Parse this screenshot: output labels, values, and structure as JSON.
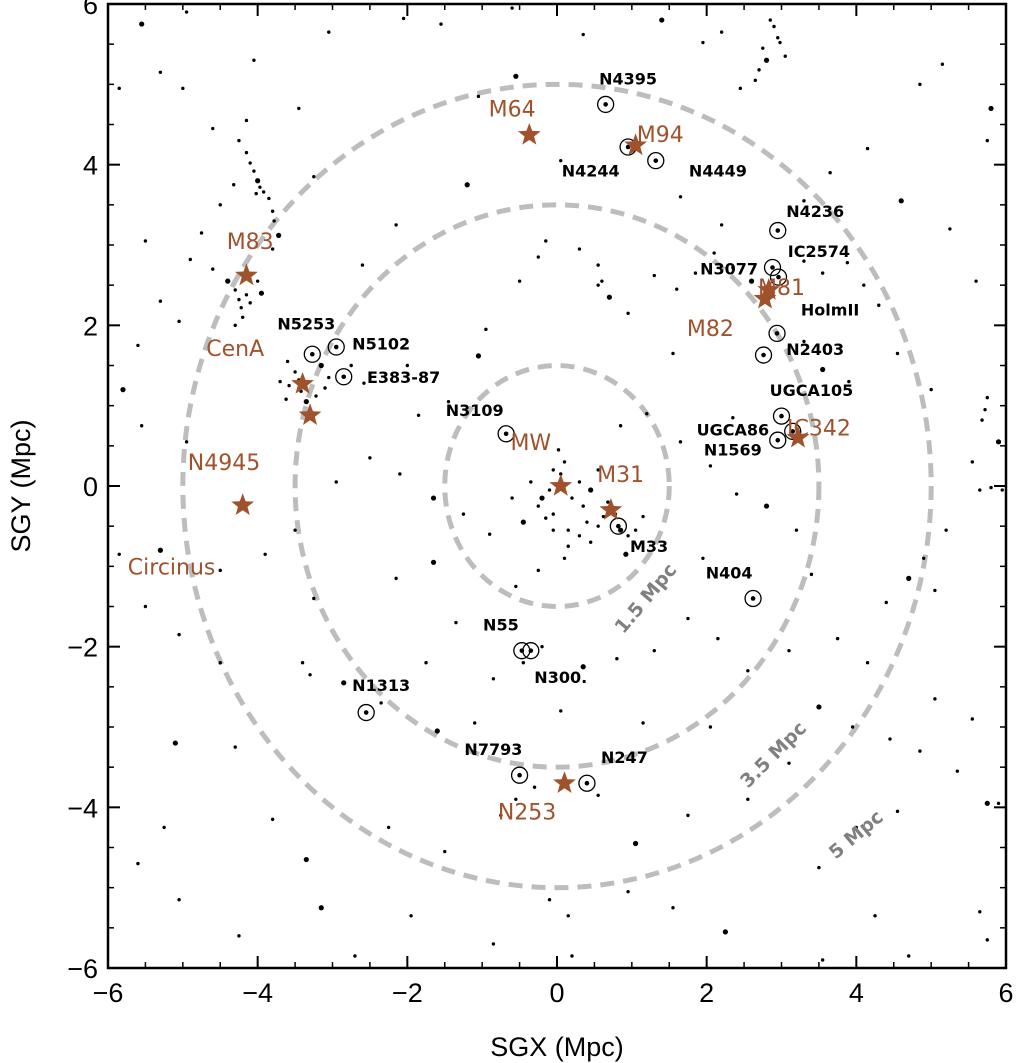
{
  "chart_data": {
    "type": "scatter",
    "xlabel": "SGX (Mpc)",
    "ylabel": "SGY (Mpc)",
    "xlim": [
      -6,
      6
    ],
    "ylim": [
      -6,
      6
    ],
    "xticks": [
      -6,
      -4,
      -2,
      0,
      2,
      4,
      6
    ],
    "yticks": [
      -6,
      -4,
      -2,
      0,
      2,
      4,
      6
    ],
    "xtick_labels": [
      "−6",
      "−4",
      "−2",
      "0",
      "2",
      "4",
      "6"
    ],
    "ytick_labels": [
      "−6",
      "−4",
      "−2",
      "0",
      "2",
      "4",
      "6"
    ],
    "grid": false,
    "colors": {
      "major": "#a0522d",
      "minor": "#000000",
      "rings": "#bdbdbd",
      "ring_labels": "#808080",
      "points": "#000000"
    },
    "rings": [
      {
        "radius": 1.5,
        "label": "1.5 Mpc",
        "label_x": 1.25,
        "label_y": -1.45,
        "angle": -50
      },
      {
        "radius": 3.5,
        "label": "3.5 Mpc",
        "label_x": 2.95,
        "label_y": -3.4,
        "angle": -45
      },
      {
        "radius": 5.0,
        "label": "5 Mpc",
        "label_x": 4.05,
        "label_y": -4.4,
        "angle": -40
      }
    ],
    "major_galaxies": [
      {
        "name": "MW",
        "x": 0.05,
        "y": 0.0,
        "label": "MW",
        "lx": -0.35,
        "ly": 0.45
      },
      {
        "name": "M31",
        "x": 0.72,
        "y": -0.3,
        "label": "M31",
        "lx": 0.85,
        "ly": 0.05
      },
      {
        "name": "M64",
        "x": -0.37,
        "y": 4.37,
        "label": "M64",
        "lx": -0.6,
        "ly": 4.6
      },
      {
        "name": "M94",
        "x": 1.05,
        "y": 4.24,
        "label": "M94",
        "lx": 1.38,
        "ly": 4.28
      },
      {
        "name": "M83",
        "x": -4.15,
        "y": 2.62,
        "label": "M83",
        "lx": -4.1,
        "ly": 2.95
      },
      {
        "name": "CenA",
        "x": -3.4,
        "y": 1.27,
        "label": "CenA",
        "lx": -4.3,
        "ly": 1.62
      },
      {
        "name": "N4945",
        "x": -3.3,
        "y": 0.88,
        "label": "N4945",
        "lx": -4.45,
        "ly": 0.2
      },
      {
        "name": "Circinus",
        "x": -4.2,
        "y": -0.24,
        "label": "Circinus",
        "lx": -5.15,
        "ly": -1.1
      },
      {
        "name": "M81",
        "x": 2.83,
        "y": 2.44,
        "label": "M81",
        "lx": 3.0,
        "ly": 2.38
      },
      {
        "name": "M82",
        "x": 2.78,
        "y": 2.33,
        "label": "M82",
        "lx": 2.05,
        "ly": 1.87
      },
      {
        "name": "IC342",
        "x": 3.22,
        "y": 0.6,
        "label": "IC342",
        "lx": 3.5,
        "ly": 0.63
      },
      {
        "name": "N253",
        "x": 0.1,
        "y": -3.7,
        "label": "N253",
        "lx": -0.4,
        "ly": -4.15
      }
    ],
    "minor_galaxies": [
      {
        "name": "N4395",
        "x": 0.65,
        "y": 4.75,
        "label": "N4395",
        "lx": 0.95,
        "ly": 5.0
      },
      {
        "name": "N4244",
        "x": 0.95,
        "y": 4.22,
        "label": "N4244",
        "lx": 0.45,
        "ly": 3.85
      },
      {
        "name": "N4449",
        "x": 1.32,
        "y": 4.05,
        "label": "N4449",
        "lx": 2.15,
        "ly": 3.85
      },
      {
        "name": "N4236",
        "x": 2.95,
        "y": 3.18,
        "label": "N4236",
        "lx": 3.45,
        "ly": 3.35
      },
      {
        "name": "IC2574",
        "x": 2.88,
        "y": 2.72,
        "label": "IC2574",
        "lx": 3.5,
        "ly": 2.85
      },
      {
        "name": "N3077",
        "x": 2.96,
        "y": 2.6,
        "label": "N3077",
        "lx": 2.3,
        "ly": 2.63
      },
      {
        "name": "HolmII",
        "x": 2.94,
        "y": 1.9,
        "label": "HolmII",
        "lx": 3.65,
        "ly": 2.12
      },
      {
        "name": "N2403",
        "x": 2.76,
        "y": 1.63,
        "label": "N2403",
        "lx": 3.45,
        "ly": 1.63
      },
      {
        "name": "N5253",
        "x": -3.27,
        "y": 1.64,
        "label": "N5253",
        "lx": -3.35,
        "ly": 1.95
      },
      {
        "name": "N5102",
        "x": -2.95,
        "y": 1.73,
        "label": "N5102",
        "lx": -2.35,
        "ly": 1.7
      },
      {
        "name": "E383-87",
        "x": -2.85,
        "y": 1.36,
        "label": "E383-87",
        "lx": -2.05,
        "ly": 1.28
      },
      {
        "name": "N3109",
        "x": -0.68,
        "y": 0.65,
        "label": "N3109",
        "lx": -1.1,
        "ly": 0.87
      },
      {
        "name": "UGCA105",
        "x": 3.0,
        "y": 0.87,
        "label": "UGCA105",
        "lx": 3.4,
        "ly": 1.12
      },
      {
        "name": "UGCA86",
        "x": 3.15,
        "y": 0.68,
        "label": "UGCA86",
        "lx": 2.35,
        "ly": 0.63
      },
      {
        "name": "N1569",
        "x": 2.95,
        "y": 0.57,
        "label": "N1569",
        "lx": 2.35,
        "ly": 0.38
      },
      {
        "name": "M33",
        "x": 0.82,
        "y": -0.5,
        "label": "M33",
        "lx": 1.23,
        "ly": -0.82
      },
      {
        "name": "N404",
        "x": 2.62,
        "y": -1.4,
        "label": "N404",
        "lx": 2.3,
        "ly": -1.15
      },
      {
        "name": "N55",
        "x": -0.47,
        "y": -2.05,
        "label": "N55",
        "lx": -0.75,
        "ly": -1.8
      },
      {
        "name": "N300",
        "x": -0.35,
        "y": -2.05,
        "label": "N300.",
        "lx": 0.05,
        "ly": -2.45
      },
      {
        "name": "N1313",
        "x": -2.55,
        "y": -2.82,
        "label": "N1313",
        "lx": -2.35,
        "ly": -2.55
      },
      {
        "name": "N7793",
        "x": -0.5,
        "y": -3.6,
        "label": "N7793",
        "lx": -0.85,
        "ly": -3.35
      },
      {
        "name": "N247",
        "x": 0.4,
        "y": -3.7,
        "label": "N247",
        "lx": 0.9,
        "ly": -3.45
      }
    ],
    "field_points": [
      [
        -5.55,
        5.75
      ],
      [
        -4.95,
        5.9
      ],
      [
        -3.05,
        5.65
      ],
      [
        -2.05,
        5.82
      ],
      [
        -1.55,
        5.75
      ],
      [
        -0.6,
        5.95
      ],
      [
        0.35,
        5.62
      ],
      [
        1.4,
        5.8
      ],
      [
        1.95,
        5.52
      ],
      [
        2.2,
        5.65
      ],
      [
        2.85,
        5.8
      ],
      [
        2.9,
        5.72
      ],
      [
        2.95,
        5.58
      ],
      [
        2.75,
        5.45
      ],
      [
        2.8,
        5.3
      ],
      [
        2.7,
        5.18
      ],
      [
        2.65,
        5.05
      ],
      [
        2.98,
        5.52
      ],
      [
        3.05,
        5.35
      ],
      [
        5.15,
        5.25
      ],
      [
        4.85,
        5.0
      ],
      [
        5.8,
        4.7
      ],
      [
        5.75,
        4.3
      ],
      [
        -5.3,
        5.15
      ],
      [
        -5.0,
        4.95
      ],
      [
        -4.05,
        5.3
      ],
      [
        -3.45,
        4.7
      ],
      [
        -1.05,
        4.85
      ],
      [
        -0.55,
        5.1
      ],
      [
        2.45,
        4.95
      ],
      [
        -4.15,
        4.55
      ],
      [
        -4.25,
        4.3
      ],
      [
        -4.15,
        4.15
      ],
      [
        -4.1,
        4.02
      ],
      [
        -4.05,
        3.92
      ],
      [
        -4.0,
        3.8
      ],
      [
        -3.97,
        3.72
      ],
      [
        -3.92,
        3.66
      ],
      [
        -4.02,
        3.64
      ],
      [
        -3.85,
        3.58
      ],
      [
        -3.8,
        3.42
      ],
      [
        -3.78,
        3.3
      ],
      [
        -3.72,
        3.12
      ],
      [
        -3.8,
        2.95
      ],
      [
        -4.32,
        3.75
      ],
      [
        -4.5,
        3.5
      ],
      [
        -4.75,
        3.15
      ],
      [
        -4.9,
        2.82
      ],
      [
        -4.6,
        2.7
      ],
      [
        -4.4,
        2.55
      ],
      [
        -4.3,
        2.44
      ],
      [
        -4.25,
        2.32
      ],
      [
        -4.22,
        2.22
      ],
      [
        -4.2,
        2.1
      ],
      [
        -4.3,
        2.0
      ],
      [
        -4.0,
        2.55
      ],
      [
        -3.95,
        2.4
      ],
      [
        -4.15,
        2.38
      ],
      [
        -4.1,
        2.28
      ],
      [
        -5.5,
        3.05
      ],
      [
        -5.3,
        2.3
      ],
      [
        -5.05,
        2.05
      ],
      [
        -5.6,
        1.75
      ],
      [
        -5.8,
        1.2
      ],
      [
        -5.55,
        0.75
      ],
      [
        -4.95,
        0.55
      ],
      [
        -3.6,
        1.55
      ],
      [
        -3.5,
        1.42
      ],
      [
        -3.45,
        1.32
      ],
      [
        -3.42,
        1.18
      ],
      [
        -3.35,
        1.05
      ],
      [
        -3.3,
        0.95
      ],
      [
        -3.22,
        1.12
      ],
      [
        -3.1,
        1.22
      ],
      [
        -3.58,
        1.25
      ],
      [
        -3.62,
        1.08
      ],
      [
        -3.7,
        1.3
      ],
      [
        -3.15,
        1.5
      ],
      [
        -3.05,
        1.35
      ],
      [
        -2.75,
        1.5
      ],
      [
        -2.58,
        1.28
      ],
      [
        -2.0,
        1.5
      ],
      [
        -1.85,
        0.88
      ],
      [
        -1.45,
        1.05
      ],
      [
        -1.05,
        1.62
      ],
      [
        -0.95,
        1.95
      ],
      [
        -0.5,
        2.55
      ],
      [
        -0.15,
        3.05
      ],
      [
        0.3,
        2.95
      ],
      [
        0.55,
        2.75
      ],
      [
        0.6,
        2.55
      ],
      [
        0.7,
        2.35
      ],
      [
        0.55,
        2.5
      ],
      [
        1.3,
        2.62
      ],
      [
        1.6,
        2.45
      ],
      [
        1.85,
        2.65
      ],
      [
        2.1,
        2.9
      ],
      [
        2.35,
        2.72
      ],
      [
        2.6,
        2.55
      ],
      [
        3.3,
        2.8
      ],
      [
        3.55,
        2.65
      ],
      [
        3.88,
        2.78
      ],
      [
        4.1,
        2.5
      ],
      [
        4.3,
        2.25
      ],
      [
        3.3,
        1.8
      ],
      [
        3.55,
        1.45
      ],
      [
        3.9,
        1.3
      ],
      [
        4.55,
        1.65
      ],
      [
        5.0,
        1.2
      ],
      [
        5.75,
        1.1
      ],
      [
        5.72,
        0.95
      ],
      [
        5.68,
        0.82
      ],
      [
        5.9,
        0.55
      ],
      [
        5.55,
        0.3
      ],
      [
        5.8,
        -0.02
      ],
      [
        5.65,
        -0.05
      ],
      [
        5.95,
        -0.05
      ],
      [
        5.2,
        -0.55
      ],
      [
        4.9,
        -0.9
      ],
      [
        4.7,
        -1.15
      ],
      [
        5.05,
        -1.3
      ],
      [
        4.4,
        -1.45
      ],
      [
        4.15,
        -2.2
      ],
      [
        3.75,
        -1.9
      ],
      [
        3.4,
        -1.1
      ],
      [
        3.2,
        -0.55
      ],
      [
        2.8,
        -0.25
      ],
      [
        2.4,
        -0.1
      ],
      [
        2.05,
        0.25
      ],
      [
        1.65,
        0.55
      ],
      [
        1.2,
        0.9
      ],
      [
        0.85,
        0.75
      ],
      [
        0.55,
        0.2
      ],
      [
        0.45,
        -0.05
      ],
      [
        0.35,
        -0.25
      ],
      [
        0.4,
        -0.45
      ],
      [
        0.55,
        -0.5
      ],
      [
        0.62,
        -0.38
      ],
      [
        0.68,
        -0.2
      ],
      [
        0.78,
        -0.35
      ],
      [
        0.85,
        -0.55
      ],
      [
        0.95,
        -0.62
      ],
      [
        1.05,
        -0.55
      ],
      [
        0.3,
        -0.62
      ],
      [
        0.15,
        -0.75
      ],
      [
        -0.05,
        -0.55
      ],
      [
        -0.15,
        -0.4
      ],
      [
        -0.2,
        -0.15
      ],
      [
        -0.1,
        -0.05
      ],
      [
        0.05,
        0.15
      ],
      [
        0.1,
        0.3
      ],
      [
        0.02,
        0.45
      ],
      [
        -0.05,
        0.2
      ],
      [
        -0.25,
        -0.25
      ],
      [
        -0.45,
        -0.45
      ],
      [
        -0.6,
        -0.15
      ],
      [
        0.1,
        -0.9
      ],
      [
        -0.25,
        -1.05
      ],
      [
        -0.55,
        -1.25
      ],
      [
        -0.9,
        -0.6
      ],
      [
        -1.25,
        -0.35
      ],
      [
        -1.65,
        -0.15
      ],
      [
        -2.1,
        0.15
      ],
      [
        -2.5,
        0.35
      ],
      [
        -2.95,
        0.05
      ],
      [
        -3.5,
        -0.55
      ],
      [
        -3.9,
        -0.85
      ],
      [
        -4.5,
        -1.05
      ],
      [
        -5.3,
        -0.8
      ],
      [
        -5.85,
        -0.85
      ],
      [
        -5.5,
        -1.5
      ],
      [
        -5.05,
        -1.85
      ],
      [
        -4.5,
        -2.2
      ],
      [
        -3.4,
        -2.2
      ],
      [
        -3.3,
        -2.35
      ],
      [
        -2.85,
        -2.45
      ],
      [
        -2.35,
        -2.7
      ],
      [
        -1.75,
        -2.2
      ],
      [
        -1.35,
        -1.7
      ],
      [
        -0.85,
        -2.4
      ],
      [
        -0.45,
        -2.2
      ],
      [
        -0.2,
        -2.0
      ],
      [
        0.35,
        -2.25
      ],
      [
        0.8,
        -2.15
      ],
      [
        1.3,
        -2.05
      ],
      [
        1.75,
        -1.65
      ],
      [
        2.15,
        -1.9
      ],
      [
        2.55,
        -2.3
      ],
      [
        3.1,
        -2.05
      ],
      [
        3.5,
        -2.75
      ],
      [
        3.95,
        -3.0
      ],
      [
        4.45,
        -3.15
      ],
      [
        4.85,
        -3.3
      ],
      [
        5.05,
        -2.65
      ],
      [
        5.55,
        -2.9
      ],
      [
        5.35,
        -3.55
      ],
      [
        5.75,
        -3.95
      ],
      [
        5.9,
        -3.95
      ],
      [
        5.65,
        -5.3
      ],
      [
        5.75,
        -5.65
      ],
      [
        4.7,
        -5.85
      ],
      [
        4.25,
        -5.35
      ],
      [
        3.55,
        -5.9
      ],
      [
        2.25,
        -5.55
      ],
      [
        1.55,
        -5.25
      ],
      [
        0.95,
        -5.05
      ],
      [
        0.15,
        -5.35
      ],
      [
        -0.85,
        -5.7
      ],
      [
        -1.95,
        -5.35
      ],
      [
        -2.7,
        -5.85
      ],
      [
        -3.15,
        -5.25
      ],
      [
        -4.25,
        -5.6
      ],
      [
        -5.05,
        -5.15
      ],
      [
        -5.6,
        -4.7
      ],
      [
        -5.25,
        -4.25
      ],
      [
        -4.3,
        -3.25
      ],
      [
        -3.8,
        -4.15
      ],
      [
        -3.35,
        -4.65
      ],
      [
        -2.25,
        -4.25
      ],
      [
        -1.5,
        -4.55
      ],
      [
        -0.75,
        -4.1
      ],
      [
        -0.55,
        -3.9
      ],
      [
        -0.3,
        -3.75
      ],
      [
        0.55,
        -3.85
      ],
      [
        1.05,
        -4.45
      ],
      [
        1.75,
        -4.1
      ],
      [
        2.55,
        -3.9
      ],
      [
        3.1,
        -3.45
      ],
      [
        3.5,
        -4.75
      ],
      [
        4.0,
        -4.25
      ],
      [
        4.55,
        -4.05
      ],
      [
        -1.6,
        -3.05
      ],
      [
        -1.1,
        -2.95
      ],
      [
        0.05,
        -2.8
      ],
      [
        1.15,
        -2.95
      ],
      [
        2.05,
        -3.0
      ],
      [
        -3.25,
        -1.4
      ],
      [
        -2.15,
        -1.15
      ],
      [
        -1.65,
        -0.95
      ],
      [
        1.95,
        -0.9
      ],
      [
        2.35,
        0.85
      ],
      [
        1.55,
        1.65
      ],
      [
        0.95,
        2.15
      ],
      [
        -0.25,
        2.85
      ],
      [
        -2.15,
        3.25
      ],
      [
        -1.2,
        3.75
      ],
      [
        0.05,
        4.05
      ],
      [
        1.65,
        3.6
      ],
      [
        2.2,
        3.25
      ],
      [
        3.3,
        3.55
      ],
      [
        3.65,
        3.9
      ],
      [
        4.15,
        4.2
      ],
      [
        4.6,
        3.55
      ],
      [
        5.25,
        3.2
      ],
      [
        5.6,
        2.55
      ],
      [
        -5.85,
        4.95
      ],
      [
        -4.6,
        4.45
      ],
      [
        -3.25,
        3.85
      ],
      [
        -2.6,
        2.75
      ],
      [
        -5.1,
        -3.2
      ],
      [
        -0.05,
        -0.35
      ],
      [
        0.2,
        -0.15
      ],
      [
        -0.35,
        0.05
      ],
      [
        0.3,
        0.05
      ],
      [
        0.15,
        -0.55
      ],
      [
        0.45,
        -0.7
      ],
      [
        0.92,
        -0.85
      ],
      [
        1.15,
        -0.38
      ],
      [
        0.2,
        -5.85
      ],
      [
        -0.1,
        -5.15
      ]
    ]
  }
}
